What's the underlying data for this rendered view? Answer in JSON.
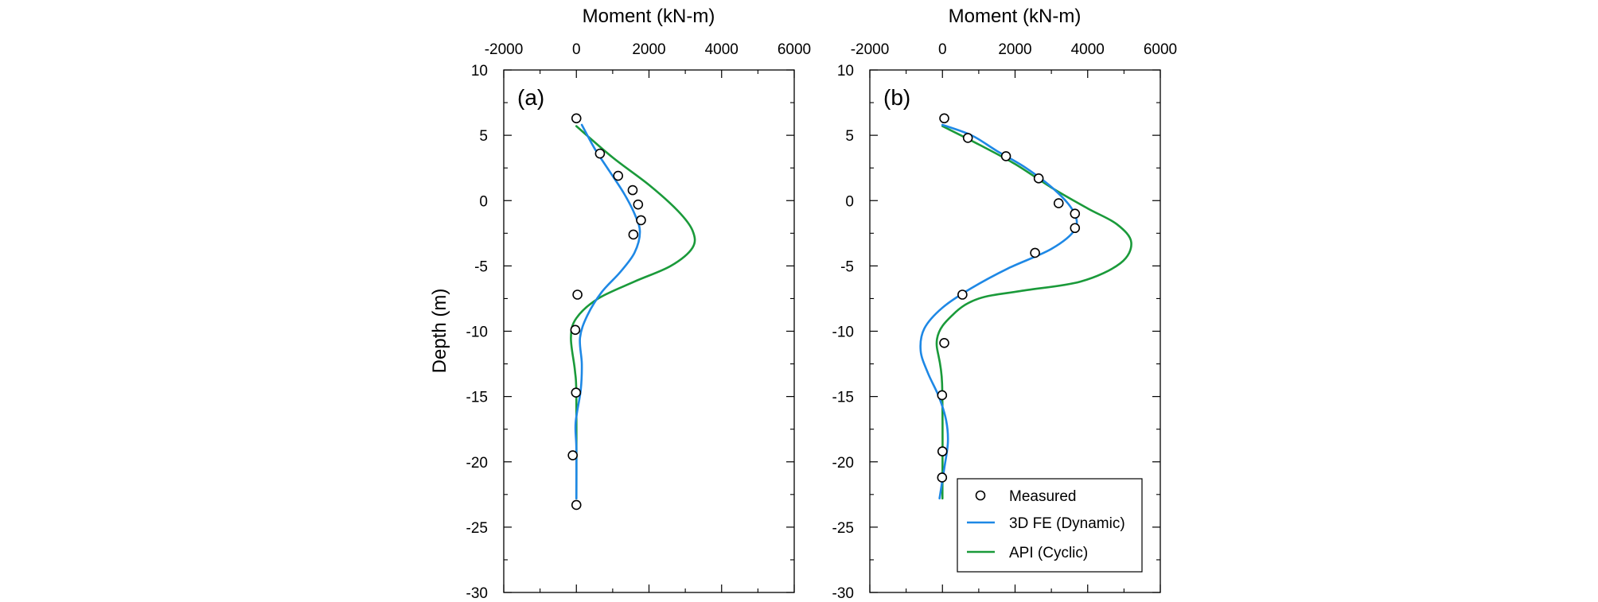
{
  "chart_data": [
    {
      "type": "line",
      "panel_label": "(a)",
      "xlabel": "Moment (kN-m)",
      "ylabel": "Depth (m)",
      "xlim": [
        -2000,
        6000
      ],
      "ylim": [
        -30,
        10
      ],
      "xticks": [
        -2000,
        0,
        2000,
        4000,
        6000
      ],
      "xtick_labels": [
        "-2000",
        "0",
        "2000",
        "4000",
        "6000"
      ],
      "yticks": [
        10,
        5,
        0,
        -5,
        -10,
        -15,
        -20,
        -25,
        -30
      ],
      "ytick_labels": [
        "10",
        "5",
        "0",
        "-5",
        "-10",
        "-15",
        "-20",
        "-25",
        "-30"
      ],
      "series": [
        {
          "name": "Measured",
          "kind": "marker",
          "points": [
            [
              0,
              6.3
            ],
            [
              650,
              3.6
            ],
            [
              1150,
              1.9
            ],
            [
              1550,
              0.8
            ],
            [
              1700,
              -0.3
            ],
            [
              1780,
              -1.5
            ],
            [
              1570,
              -2.6
            ],
            [
              30,
              -7.2
            ],
            [
              -30,
              -9.9
            ],
            [
              -10,
              -14.7
            ],
            [
              -100,
              -19.5
            ],
            [
              0,
              -23.3
            ]
          ]
        },
        {
          "name": "3D FE (Dynamic)",
          "kind": "line",
          "color": "#1e88e5",
          "points": [
            [
              150,
              5.8
            ],
            [
              500,
              4.0
            ],
            [
              900,
              2.3
            ],
            [
              1300,
              0.6
            ],
            [
              1600,
              -1.0
            ],
            [
              1750,
              -2.4
            ],
            [
              1600,
              -4.0
            ],
            [
              1200,
              -5.5
            ],
            [
              700,
              -7.0
            ],
            [
              300,
              -8.8
            ],
            [
              100,
              -10.5
            ],
            [
              150,
              -12.5
            ],
            [
              120,
              -14.5
            ],
            [
              -20,
              -17.0
            ],
            [
              0,
              -19.0
            ],
            [
              0,
              -22.8
            ]
          ]
        },
        {
          "name": "API (Cyclic)",
          "kind": "line",
          "color": "#1a9a3a",
          "points": [
            [
              0,
              5.7
            ],
            [
              1000,
              3.3
            ],
            [
              2000,
              1.2
            ],
            [
              2800,
              -0.8
            ],
            [
              3200,
              -2.3
            ],
            [
              3200,
              -3.6
            ],
            [
              2600,
              -5.0
            ],
            [
              1600,
              -6.2
            ],
            [
              600,
              -7.5
            ],
            [
              0,
              -9.0
            ],
            [
              -150,
              -10.5
            ],
            [
              -40,
              -13.0
            ],
            [
              0,
              -15.0
            ],
            [
              0,
              -22.8
            ]
          ]
        }
      ]
    },
    {
      "type": "line",
      "panel_label": "(b)",
      "xlabel": "Moment (kN-m)",
      "xlim": [
        -2000,
        6000
      ],
      "ylim": [
        -30,
        10
      ],
      "xticks": [
        -2000,
        0,
        2000,
        4000,
        6000
      ],
      "xtick_labels": [
        "-2000",
        "0",
        "2000",
        "4000",
        "6000"
      ],
      "yticks": [
        10,
        5,
        0,
        -5,
        -10,
        -15,
        -20,
        -25,
        -30
      ],
      "ytick_labels": [
        "10",
        "5",
        "0",
        "-5",
        "-10",
        "-15",
        "-20",
        "-25",
        "-30"
      ],
      "legend": {
        "position": "lower-right",
        "entries": [
          "Measured",
          "3D FE (Dynamic)",
          "API (Cyclic)"
        ]
      },
      "series": [
        {
          "name": "Measured",
          "kind": "marker",
          "points": [
            [
              50,
              6.3
            ],
            [
              700,
              4.8
            ],
            [
              1750,
              3.4
            ],
            [
              2650,
              1.7
            ],
            [
              3200,
              -0.2
            ],
            [
              3650,
              -1.0
            ],
            [
              3650,
              -2.1
            ],
            [
              2550,
              -4.0
            ],
            [
              550,
              -7.2
            ],
            [
              50,
              -10.9
            ],
            [
              -10,
              -14.9
            ],
            [
              0,
              -19.2
            ],
            [
              -10,
              -21.2
            ]
          ]
        },
        {
          "name": "3D FE (Dynamic)",
          "kind": "line",
          "color": "#1e88e5",
          "points": [
            [
              0,
              5.8
            ],
            [
              800,
              5.0
            ],
            [
              1500,
              3.8
            ],
            [
              2300,
              2.5
            ],
            [
              3100,
              0.8
            ],
            [
              3600,
              -0.8
            ],
            [
              3650,
              -2.2
            ],
            [
              3000,
              -3.7
            ],
            [
              1800,
              -5.2
            ],
            [
              800,
              -6.7
            ],
            [
              0,
              -8.2
            ],
            [
              -500,
              -9.8
            ],
            [
              -600,
              -11.5
            ],
            [
              -400,
              -13.2
            ],
            [
              -100,
              -15.0
            ],
            [
              100,
              -16.8
            ],
            [
              150,
              -18.5
            ],
            [
              50,
              -20.5
            ],
            [
              -80,
              -22.8
            ]
          ]
        },
        {
          "name": "API (Cyclic)",
          "kind": "line",
          "color": "#1a9a3a",
          "points": [
            [
              0,
              5.7
            ],
            [
              1000,
              4.3
            ],
            [
              2000,
              2.8
            ],
            [
              3000,
              1.0
            ],
            [
              4000,
              -0.6
            ],
            [
              4800,
              -1.8
            ],
            [
              5200,
              -3.2
            ],
            [
              4900,
              -4.8
            ],
            [
              3800,
              -6.2
            ],
            [
              2200,
              -6.9
            ],
            [
              1000,
              -7.5
            ],
            [
              300,
              -8.7
            ],
            [
              -150,
              -10.6
            ],
            [
              -10,
              -14.0
            ],
            [
              0,
              -22.8
            ]
          ]
        }
      ]
    }
  ]
}
